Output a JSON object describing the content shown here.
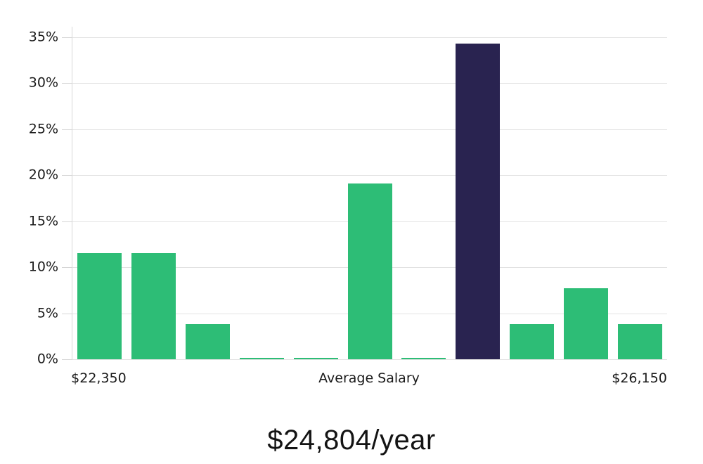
{
  "chart_data": {
    "type": "bar",
    "title": "$24,804/year",
    "values": [
      11.5,
      11.5,
      3.8,
      0.15,
      0.15,
      19.05,
      0.15,
      34.3,
      3.8,
      7.7,
      3.8
    ],
    "highlight_index": 7,
    "yticks": [
      0,
      5,
      10,
      15,
      20,
      25,
      30,
      35
    ],
    "ytick_suffix": "%",
    "ylim": [
      0,
      36.1
    ],
    "xtick_labels": [
      {
        "text": "$22,350",
        "slot": 0
      },
      {
        "text": "Average Salary",
        "slot": 5
      },
      {
        "text": "$26,150",
        "slot": 10
      }
    ],
    "colors": {
      "bar": "#2dbd76",
      "highlight": "#292350",
      "grid": "#e2e2e2",
      "axis": "#d6d6d6",
      "text": "#1a1a1a"
    },
    "grid": true,
    "legend": false
  }
}
